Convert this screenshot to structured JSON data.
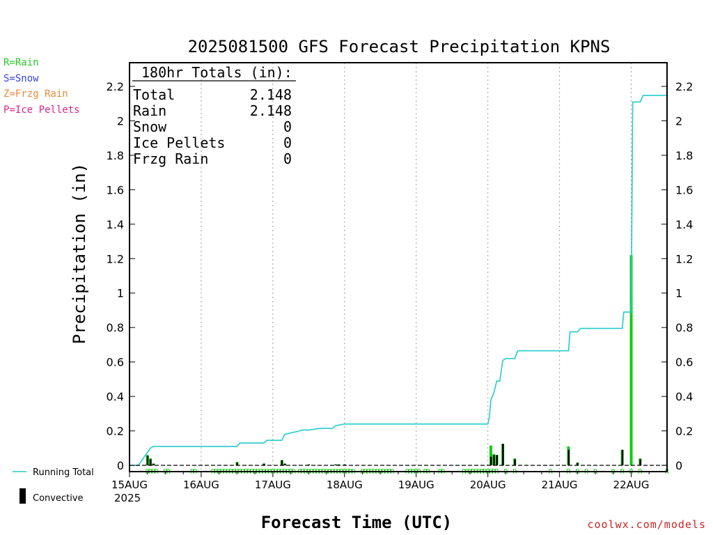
{
  "page": {
    "title": "2025081500 GFS Forecast Precipitation KPNS",
    "credit": "coolwx.com/models"
  },
  "precip_type_legend": [
    {
      "label": "R=Rain",
      "color": "#22cc22"
    },
    {
      "label": "S=Snow",
      "color": "#3344dd"
    },
    {
      "label": "Z=Frzg Rain",
      "color": "#ee8833"
    },
    {
      "label": "P=Ice Pellets",
      "color": "#dd2288"
    }
  ],
  "totals_box": {
    "header": "180hr Totals (in):",
    "rows": [
      {
        "label": "Total",
        "value": "2.148"
      },
      {
        "label": "Rain",
        "value": "2.148"
      },
      {
        "label": "Snow",
        "value": "0"
      },
      {
        "label": "Ice Pellets",
        "value": "0"
      },
      {
        "label": "Frzg Rain",
        "value": "0"
      }
    ]
  },
  "series_legend": {
    "running_total": "Running Total",
    "convective": "Convective"
  },
  "colors": {
    "running_total": "#22cccc",
    "precip": "#11cc11",
    "convective": "#000000",
    "rain_marker": "#22cc22",
    "gridline": "#999999"
  },
  "chart_data": {
    "type": "bar",
    "title": "2025081500 GFS Forecast Precipitation KPNS",
    "xlabel": "Forecast Time (UTC)",
    "ylabel": "Precipitation (in)",
    "ylim": [
      0,
      2.35
    ],
    "yticks": [
      0,
      0.2,
      0.4,
      0.6,
      0.8,
      1,
      1.2,
      1.4,
      1.6,
      1.8,
      2,
      2.2
    ],
    "ytick_labels": [
      "0",
      "0.2",
      "0.4",
      "0.6",
      "0.8",
      "1",
      "1.2",
      "1.4",
      "1.6",
      "1.8",
      "2",
      "2.2"
    ],
    "x_unit": "forecast hour",
    "xlim": [
      0,
      180
    ],
    "xticks": [
      0,
      24,
      48,
      72,
      96,
      120,
      144,
      168
    ],
    "xtick_labels": [
      "15AUG",
      "16AUG",
      "17AUG",
      "18AUG",
      "19AUG",
      "20AUG",
      "21AUG",
      "22AUG"
    ],
    "x_year_label": "2025",
    "grid": "vertical dotted at day boundaries",
    "interval_precip": [
      {
        "hour": 6,
        "total": 0.06,
        "convective": 0.055
      },
      {
        "hour": 7,
        "total": 0.04,
        "convective": 0.035
      },
      {
        "hour": 8,
        "total": 0.01,
        "convective": 0.01
      },
      {
        "hour": 36,
        "total": 0.02,
        "convective": 0.015
      },
      {
        "hour": 45,
        "total": 0.01,
        "convective": 0.01
      },
      {
        "hour": 51,
        "total": 0.03,
        "convective": 0.03
      },
      {
        "hour": 52,
        "total": 0.01,
        "convective": 0.01
      },
      {
        "hour": 60,
        "total": 0.005,
        "convective": 0.005
      },
      {
        "hour": 69,
        "total": 0.005,
        "convective": 0.005
      },
      {
        "hour": 70,
        "total": 0.005,
        "convective": 0.005
      },
      {
        "hour": 72,
        "total": 0.005,
        "convective": 0.005
      },
      {
        "hour": 121,
        "total": 0.115,
        "convective": 0.05
      },
      {
        "hour": 122,
        "total": 0.065,
        "convective": 0.06
      },
      {
        "hour": 123,
        "total": 0.06,
        "convective": 0.06
      },
      {
        "hour": 125,
        "total": 0.125,
        "convective": 0.125
      },
      {
        "hour": 129,
        "total": 0.04,
        "convective": 0.035
      },
      {
        "hour": 147,
        "total": 0.11,
        "convective": 0.09
      },
      {
        "hour": 150,
        "total": 0.015,
        "convective": 0.015
      },
      {
        "hour": 165,
        "total": 0.09,
        "convective": 0.09
      },
      {
        "hour": 168,
        "total": 1.22,
        "convective": 0
      },
      {
        "hour": 171,
        "total": 0.04,
        "convective": 0.035
      }
    ],
    "running_total": {
      "x": [
        0,
        3,
        5,
        6,
        7,
        8,
        9,
        36,
        37,
        45,
        46,
        51,
        52,
        57,
        58,
        60,
        64,
        68,
        69,
        72,
        120,
        120.5,
        121,
        122,
        123,
        124,
        125,
        126,
        129,
        130,
        147,
        147.5,
        150,
        151,
        165,
        165.5,
        168,
        168.5,
        171,
        172,
        180
      ],
      "y": [
        0,
        0,
        0.05,
        0.075,
        0.1,
        0.11,
        0.11,
        0.11,
        0.13,
        0.13,
        0.145,
        0.145,
        0.18,
        0.2,
        0.205,
        0.205,
        0.215,
        0.215,
        0.23,
        0.24,
        0.24,
        0.28,
        0.38,
        0.42,
        0.49,
        0.49,
        0.61,
        0.62,
        0.62,
        0.665,
        0.665,
        0.775,
        0.775,
        0.795,
        0.795,
        0.89,
        0.89,
        2.11,
        2.11,
        2.148,
        2.148
      ]
    },
    "rain_marker_hours": [
      6,
      7,
      8,
      9,
      12,
      13,
      21,
      22,
      28,
      29,
      30,
      31,
      32,
      33,
      34,
      35,
      36,
      37,
      38,
      39,
      40,
      41,
      42,
      43,
      44,
      45,
      46,
      47,
      48,
      49,
      50,
      51,
      52,
      53,
      54,
      55,
      57,
      58,
      59,
      60,
      61,
      62,
      63,
      64,
      65,
      66,
      67,
      68,
      69,
      70,
      71,
      72,
      73,
      74,
      75,
      78,
      79,
      80,
      81,
      82,
      83,
      84,
      85,
      86,
      87,
      88,
      93,
      94,
      95,
      96,
      97,
      99,
      100,
      104,
      105,
      112,
      113,
      114,
      115,
      116,
      117,
      118,
      119,
      120,
      121,
      122,
      123,
      126,
      129,
      141,
      147,
      150,
      153,
      156,
      162,
      165,
      168,
      171,
      180
    ],
    "rain_marker_letter": "R"
  }
}
